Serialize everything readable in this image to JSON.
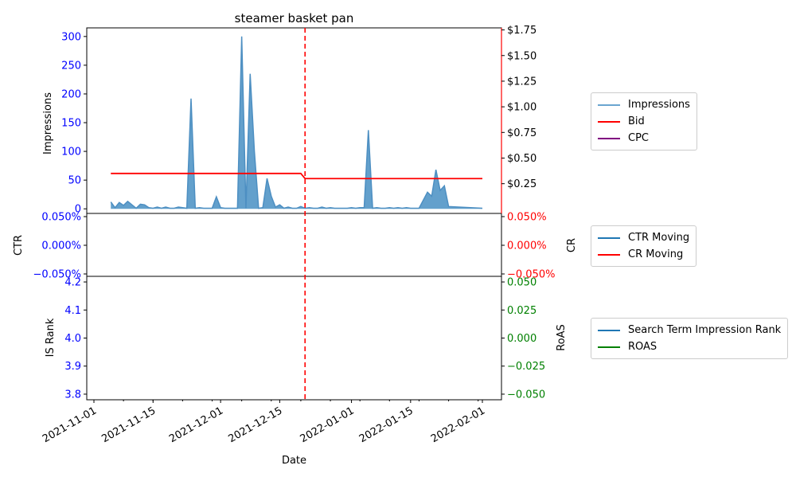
{
  "colors": {
    "impressions": "#1f77b4",
    "impressions_fill": "#5b9bc9",
    "bid": "#ff0000",
    "cpc": "#800080",
    "ctr": "#1f77b4",
    "cr": "#ff0000",
    "rank": "#1f77b4",
    "roas": "#008000",
    "left_ticks": "#0000ff",
    "right_ticks_top": "#ff0000",
    "right_ticks_bottom": "#008000",
    "event_line": "#ff0000"
  },
  "legend_top": [
    "Impressions",
    "Bid",
    "CPC"
  ],
  "legend_mid": [
    "CTR Moving",
    "CR Moving"
  ],
  "legend_bottom": [
    "Search Term Impression Rank",
    "ROAS"
  ],
  "chart_data": [
    {
      "type": "area",
      "title": "steamer basket pan",
      "ylabel": "Impressions",
      "y2label": "",
      "ylim": [
        -8,
        315
      ],
      "y2lim": [
        -0.04,
        1.77
      ],
      "y_ticks": [
        0,
        50,
        100,
        150,
        200,
        250,
        300
      ],
      "y_tick_labels": [
        "0",
        "50",
        "100",
        "150",
        "200",
        "250",
        "300"
      ],
      "y2_ticks": [
        0.25,
        0.5,
        0.75,
        1.0,
        1.25,
        1.5,
        1.75
      ],
      "y2_tick_labels": [
        "$0.25",
        "$0.50",
        "$0.75",
        "$1.00",
        "$1.25",
        "$1.50",
        "$1.75"
      ],
      "event_date": "2021-12-21",
      "series": [
        {
          "name": "Impressions",
          "points": [
            [
              "2021-11-05",
              12
            ],
            [
              "2021-11-06",
              2
            ],
            [
              "2021-11-07",
              11
            ],
            [
              "2021-11-08",
              6
            ],
            [
              "2021-11-09",
              13
            ],
            [
              "2021-11-10",
              7
            ],
            [
              "2021-11-11",
              1
            ],
            [
              "2021-11-12",
              8
            ],
            [
              "2021-11-13",
              7
            ],
            [
              "2021-11-14",
              2
            ],
            [
              "2021-11-15",
              1
            ],
            [
              "2021-11-16",
              3
            ],
            [
              "2021-11-17",
              1
            ],
            [
              "2021-11-18",
              3
            ],
            [
              "2021-11-19",
              1
            ],
            [
              "2021-11-20",
              1
            ],
            [
              "2021-11-21",
              3
            ],
            [
              "2021-11-22",
              2
            ],
            [
              "2021-11-23",
              1
            ],
            [
              "2021-11-24",
              192
            ],
            [
              "2021-11-25",
              1
            ],
            [
              "2021-11-26",
              2
            ],
            [
              "2021-11-27",
              1
            ],
            [
              "2021-11-28",
              1
            ],
            [
              "2021-11-29",
              1
            ],
            [
              "2021-11-30",
              21
            ],
            [
              "2021-12-01",
              2
            ],
            [
              "2021-12-02",
              1
            ],
            [
              "2021-12-03",
              1
            ],
            [
              "2021-12-04",
              1
            ],
            [
              "2021-12-05",
              1
            ],
            [
              "2021-12-06",
              300
            ],
            [
              "2021-12-07",
              1
            ],
            [
              "2021-12-08",
              235
            ],
            [
              "2021-12-09",
              100
            ],
            [
              "2021-12-10",
              1
            ],
            [
              "2021-12-11",
              2
            ],
            [
              "2021-12-12",
              53
            ],
            [
              "2021-12-13",
              22
            ],
            [
              "2021-12-14",
              3
            ],
            [
              "2021-12-15",
              7
            ],
            [
              "2021-12-16",
              1
            ],
            [
              "2021-12-17",
              3
            ],
            [
              "2021-12-18",
              1
            ],
            [
              "2021-12-19",
              1
            ],
            [
              "2021-12-20",
              4
            ],
            [
              "2021-12-21",
              1
            ],
            [
              "2021-12-22",
              2
            ],
            [
              "2021-12-23",
              1
            ],
            [
              "2021-12-24",
              1
            ],
            [
              "2021-12-25",
              3
            ],
            [
              "2021-12-26",
              1
            ],
            [
              "2021-12-27",
              2
            ],
            [
              "2021-12-28",
              1
            ],
            [
              "2021-12-29",
              1
            ],
            [
              "2021-12-30",
              1
            ],
            [
              "2021-12-31",
              1
            ],
            [
              "2022-01-01",
              2
            ],
            [
              "2022-01-02",
              1
            ],
            [
              "2022-01-03",
              2
            ],
            [
              "2022-01-04",
              2
            ],
            [
              "2022-01-05",
              137
            ],
            [
              "2022-01-06",
              1
            ],
            [
              "2022-01-07",
              2
            ],
            [
              "2022-01-08",
              1
            ],
            [
              "2022-01-09",
              1
            ],
            [
              "2022-01-10",
              2
            ],
            [
              "2022-01-11",
              1
            ],
            [
              "2022-01-12",
              2
            ],
            [
              "2022-01-13",
              1
            ],
            [
              "2022-01-14",
              2
            ],
            [
              "2022-01-15",
              1
            ],
            [
              "2022-01-16",
              1
            ],
            [
              "2022-01-17",
              1
            ],
            [
              "2022-01-19",
              29
            ],
            [
              "2022-01-20",
              22
            ],
            [
              "2022-01-21",
              68
            ],
            [
              "2022-01-22",
              32
            ],
            [
              "2022-01-23",
              40
            ],
            [
              "2022-01-24",
              4
            ],
            [
              "2022-02-01",
              1
            ]
          ]
        },
        {
          "name": "Bid",
          "axis": "right",
          "points": [
            [
              "2021-11-05",
              0.35
            ],
            [
              "2021-12-20",
              0.35
            ],
            [
              "2021-12-21",
              0.3
            ],
            [
              "2022-02-01",
              0.3
            ]
          ]
        },
        {
          "name": "CPC",
          "axis": "right",
          "points": []
        }
      ]
    },
    {
      "type": "line",
      "ylabel": "CTR",
      "y2label": "CR",
      "ylim": [
        -0.0005,
        0.0005
      ],
      "y2lim": [
        -0.0005,
        0.0005
      ],
      "y_tick_labels": [
        "0.050%",
        "0.000%",
        "−0.050%"
      ],
      "y2_tick_labels": [
        "0.050%",
        "0.000%",
        "−0.050%"
      ],
      "series": [
        {
          "name": "CTR Moving",
          "points": []
        },
        {
          "name": "CR Moving",
          "points": []
        }
      ]
    },
    {
      "type": "line",
      "ylabel": "IS Rank",
      "y2label": "RoAS",
      "xlabel": "Date",
      "ylim": [
        3.78,
        4.22
      ],
      "y2lim": [
        -0.055,
        0.055
      ],
      "y_tick_labels": [
        "4.2",
        "4.1",
        "4.0",
        "3.9",
        "3.8"
      ],
      "y2_tick_labels": [
        "0.050",
        "0.025",
        "0.000",
        "−0.025",
        "−0.050"
      ],
      "x_tick_labels": [
        "2021-11-01",
        "2021-11-15",
        "2021-12-01",
        "2021-12-15",
        "2022-01-01",
        "2022-01-15",
        "2022-02-01"
      ],
      "series": [
        {
          "name": "Search Term Impression Rank",
          "points": []
        },
        {
          "name": "ROAS",
          "points": []
        }
      ]
    }
  ]
}
